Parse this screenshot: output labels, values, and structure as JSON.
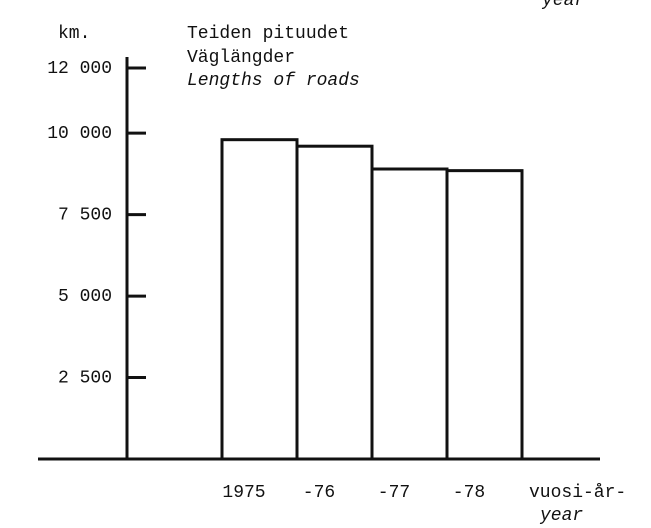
{
  "chart_data": {
    "type": "bar",
    "title": [
      "Teiden pituudet",
      "Väglängder",
      "Lengths of roads"
    ],
    "y_label": "km.",
    "x_label": [
      "vuosi-år-",
      "year"
    ],
    "top_annotation": "year",
    "categories": [
      "1975",
      "-76",
      "-77",
      "-78"
    ],
    "values": [
      9800,
      9600,
      8900,
      8850
    ],
    "color": "#111111",
    "ylim": [
      0,
      12000
    ],
    "yticks": [
      {
        "value": 2500,
        "label": "2 500"
      },
      {
        "value": 5000,
        "label": "5 000"
      },
      {
        "value": 7500,
        "label": "7 500"
      },
      {
        "value": 10000,
        "label": "10 000"
      },
      {
        "value": 12000,
        "label": "12 000"
      }
    ],
    "grid": false
  }
}
